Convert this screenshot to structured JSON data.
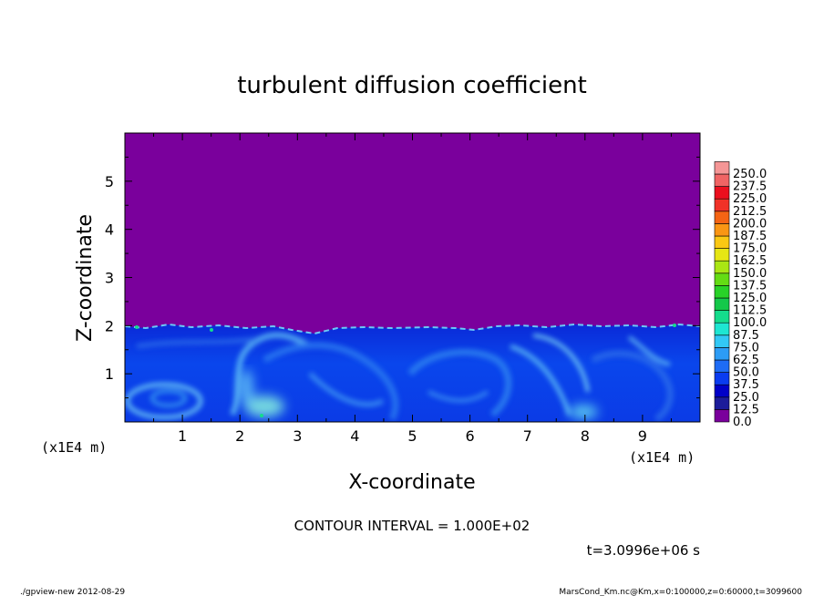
{
  "chart_data": {
    "type": "heatmap",
    "title": "turbulent diffusion coefficient",
    "xlabel": "X-coordinate",
    "ylabel": "Z-coordinate",
    "x_unit_left": "(x1E4 m)",
    "x_unit_right": "(x1E4 m)",
    "xlim": [
      0,
      10
    ],
    "ylim": [
      0,
      6
    ],
    "x_ticks": [
      "1",
      "2",
      "3",
      "4",
      "5",
      "6",
      "7",
      "8",
      "9"
    ],
    "y_ticks": [
      "1",
      "2",
      "3",
      "4",
      "5"
    ],
    "colorbar": {
      "levels": [
        "0.0",
        "12.5",
        "25.0",
        "37.5",
        "50.0",
        "62.5",
        "75.0",
        "87.5",
        "100.0",
        "112.5",
        "125.0",
        "137.5",
        "150.0",
        "162.5",
        "175.0",
        "187.5",
        "200.0",
        "212.5",
        "225.0",
        "237.5",
        "250.0"
      ],
      "colors": [
        "#7a009c",
        "#1c1c9a",
        "#0000c8",
        "#0a3cf0",
        "#1e6cf5",
        "#2c9cf5",
        "#32c8f5",
        "#1ee6d2",
        "#14dc8c",
        "#14c84a",
        "#28d228",
        "#64dc14",
        "#aae614",
        "#e6e614",
        "#fac814",
        "#fa9614",
        "#f56414",
        "#f03228",
        "#eb0f1e",
        "#f06464",
        "#f59696"
      ]
    },
    "contour_interval": "CONTOUR INTERVAL = 1.000E+02",
    "time_label": "t=3.0996e+06 s",
    "footer_left": "./gpview-new   2012-08-29",
    "footer_right": "MarsCond_Km.nc@Km,x=0:100000,z=0:60000,t=3099600"
  }
}
